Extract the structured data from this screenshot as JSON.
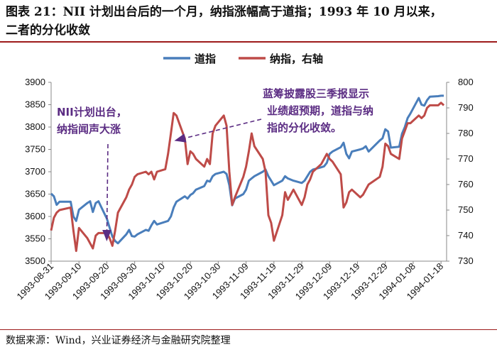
{
  "header": {
    "title_line1": "图表 21：NII 计划出台后的一个月，纳指涨幅高于道指；1993 年 10 月以来，",
    "title_line2": "二者的分化收敛"
  },
  "footer": {
    "source": "数据来源：Wind，兴业证券经济与金融研究院整理"
  },
  "colors": {
    "dow": "#4a7ebb",
    "nasdaq": "#be4b48",
    "annotation": "#5b2c83",
    "rule": "#9d1b1b"
  },
  "chart_data": {
    "type": "line",
    "legend_position": "top",
    "grid": false,
    "x_labels": [
      "1993-08-31",
      "1993-09-10",
      "1993-09-20",
      "1993-09-30",
      "1993-10-10",
      "1993-10-20",
      "1993-10-30",
      "1993-11-09",
      "1993-11-19",
      "1993-11-29",
      "1993-12-09",
      "1993-12-19",
      "1993-12-29",
      "1994-01-08",
      "1994-01-18"
    ],
    "x_range": [
      "1993-08-31",
      "1994-01-20"
    ],
    "left_axis": {
      "range": [
        3500,
        3900
      ],
      "ticks": [
        3500,
        3550,
        3600,
        3650,
        3700,
        3750,
        3800,
        3850,
        3900
      ]
    },
    "right_axis": {
      "range": [
        730,
        800
      ],
      "ticks": [
        730,
        740,
        750,
        760,
        770,
        780,
        790,
        800
      ]
    },
    "series": [
      {
        "name": "道指",
        "axis": "left",
        "points": [
          [
            "1993-08-31",
            3651
          ],
          [
            "1993-09-01",
            3645
          ],
          [
            "1993-09-02",
            3626
          ],
          [
            "1993-09-03",
            3633
          ],
          [
            "1993-09-07",
            3633
          ],
          [
            "1993-09-08",
            3600
          ],
          [
            "1993-09-09",
            3590
          ],
          [
            "1993-09-10",
            3615
          ],
          [
            "1993-09-13",
            3630
          ],
          [
            "1993-09-14",
            3634
          ],
          [
            "1993-09-15",
            3610
          ],
          [
            "1993-09-16",
            3630
          ],
          [
            "1993-09-17",
            3634
          ],
          [
            "1993-09-20",
            3595
          ],
          [
            "1993-09-21",
            3575
          ],
          [
            "1993-09-22",
            3555
          ],
          [
            "1993-09-23",
            3545
          ],
          [
            "1993-09-24",
            3540
          ],
          [
            "1993-09-27",
            3560
          ],
          [
            "1993-09-28",
            3570
          ],
          [
            "1993-09-29",
            3556
          ],
          [
            "1993-09-30",
            3555
          ],
          [
            "1993-10-01",
            3560
          ],
          [
            "1993-10-04",
            3570
          ],
          [
            "1993-10-05",
            3568
          ],
          [
            "1993-10-06",
            3580
          ],
          [
            "1993-10-07",
            3590
          ],
          [
            "1993-10-08",
            3582
          ],
          [
            "1993-10-11",
            3588
          ],
          [
            "1993-10-12",
            3590
          ],
          [
            "1993-10-13",
            3600
          ],
          [
            "1993-10-14",
            3620
          ],
          [
            "1993-10-15",
            3633
          ],
          [
            "1993-10-18",
            3645
          ],
          [
            "1993-10-19",
            3640
          ],
          [
            "1993-10-20",
            3648
          ],
          [
            "1993-10-21",
            3652
          ],
          [
            "1993-10-22",
            3660
          ],
          [
            "1993-10-25",
            3668
          ],
          [
            "1993-10-26",
            3680
          ],
          [
            "1993-10-27",
            3678
          ],
          [
            "1993-10-28",
            3690
          ],
          [
            "1993-10-29",
            3695
          ],
          [
            "1993-11-01",
            3700
          ],
          [
            "1993-11-02",
            3695
          ],
          [
            "1993-11-03",
            3670
          ],
          [
            "1993-11-04",
            3625
          ],
          [
            "1993-11-05",
            3640
          ],
          [
            "1993-11-08",
            3650
          ],
          [
            "1993-11-09",
            3660
          ],
          [
            "1993-11-10",
            3680
          ],
          [
            "1993-11-11",
            3685
          ],
          [
            "1993-11-12",
            3690
          ],
          [
            "1993-11-15",
            3700
          ],
          [
            "1993-11-16",
            3705
          ],
          [
            "1993-11-17",
            3690
          ],
          [
            "1993-11-18",
            3680
          ],
          [
            "1993-11-19",
            3670
          ],
          [
            "1993-11-22",
            3680
          ],
          [
            "1993-11-23",
            3690
          ],
          [
            "1993-11-24",
            3685
          ],
          [
            "1993-11-26",
            3680
          ],
          [
            "1993-11-29",
            3675
          ],
          [
            "1993-11-30",
            3680
          ],
          [
            "1993-12-01",
            3690
          ],
          [
            "1993-12-02",
            3700
          ],
          [
            "1993-12-03",
            3705
          ],
          [
            "1993-12-06",
            3710
          ],
          [
            "1993-12-07",
            3712
          ],
          [
            "1993-12-08",
            3720
          ],
          [
            "1993-12-09",
            3740
          ],
          [
            "1993-12-10",
            3745
          ],
          [
            "1993-12-13",
            3755
          ],
          [
            "1993-12-14",
            3765
          ],
          [
            "1993-12-15",
            3740
          ],
          [
            "1993-12-16",
            3730
          ],
          [
            "1993-12-17",
            3745
          ],
          [
            "1993-12-20",
            3750
          ],
          [
            "1993-12-21",
            3752
          ],
          [
            "1993-12-22",
            3757
          ],
          [
            "1993-12-23",
            3745
          ],
          [
            "1993-12-27",
            3770
          ],
          [
            "1993-12-28",
            3775
          ],
          [
            "1993-12-29",
            3795
          ],
          [
            "1993-12-30",
            3790
          ],
          [
            "1993-12-31",
            3754
          ],
          [
            "1994-01-03",
            3756
          ],
          [
            "1994-01-04",
            3785
          ],
          [
            "1994-01-05",
            3800
          ],
          [
            "1994-01-06",
            3820
          ],
          [
            "1994-01-07",
            3830
          ],
          [
            "1994-01-10",
            3865
          ],
          [
            "1994-01-11",
            3850
          ],
          [
            "1994-01-12",
            3848
          ],
          [
            "1994-01-13",
            3860
          ],
          [
            "1994-01-14",
            3868
          ],
          [
            "1994-01-17",
            3869
          ],
          [
            "1994-01-18",
            3870
          ],
          [
            "1994-01-19",
            3870
          ]
        ]
      },
      {
        "name": "纳指，右轴",
        "axis": "right",
        "points": [
          [
            "1993-08-31",
            742
          ],
          [
            "1993-09-01",
            747
          ],
          [
            "1993-09-02",
            749
          ],
          [
            "1993-09-03",
            750
          ],
          [
            "1993-09-07",
            751
          ],
          [
            "1993-09-08",
            742
          ],
          [
            "1993-09-09",
            734
          ],
          [
            "1993-09-10",
            743
          ],
          [
            "1993-09-13",
            739
          ],
          [
            "1993-09-14",
            737
          ],
          [
            "1993-09-15",
            735
          ],
          [
            "1993-09-16",
            740
          ],
          [
            "1993-09-17",
            741
          ],
          [
            "1993-09-20",
            741
          ],
          [
            "1993-09-21",
            739
          ],
          [
            "1993-09-22",
            736
          ],
          [
            "1993-09-23",
            742
          ],
          [
            "1993-09-24",
            749
          ],
          [
            "1993-09-27",
            755
          ],
          [
            "1993-09-28",
            758
          ],
          [
            "1993-09-29",
            760
          ],
          [
            "1993-09-30",
            763
          ],
          [
            "1993-10-01",
            764
          ],
          [
            "1993-10-04",
            765
          ],
          [
            "1993-10-05",
            764
          ],
          [
            "1993-10-06",
            765
          ],
          [
            "1993-10-07",
            762
          ],
          [
            "1993-10-08",
            765
          ],
          [
            "1993-10-11",
            766
          ],
          [
            "1993-10-12",
            772
          ],
          [
            "1993-10-13",
            780
          ],
          [
            "1993-10-14",
            788
          ],
          [
            "1993-10-15",
            787
          ],
          [
            "1993-10-18",
            778
          ],
          [
            "1993-10-19",
            768
          ],
          [
            "1993-10-20",
            773
          ],
          [
            "1993-10-21",
            772
          ],
          [
            "1993-10-22",
            770
          ],
          [
            "1993-10-25",
            767
          ],
          [
            "1993-10-26",
            770
          ],
          [
            "1993-10-27",
            768
          ],
          [
            "1993-10-28",
            780
          ],
          [
            "1993-10-29",
            783
          ],
          [
            "1993-11-01",
            787
          ],
          [
            "1993-11-02",
            783
          ],
          [
            "1993-11-03",
            765
          ],
          [
            "1993-11-04",
            752
          ],
          [
            "1993-11-05",
            755
          ],
          [
            "1993-11-08",
            763
          ],
          [
            "1993-11-09",
            767
          ],
          [
            "1993-11-10",
            773
          ],
          [
            "1993-11-11",
            780
          ],
          [
            "1993-11-12",
            775
          ],
          [
            "1993-11-15",
            770
          ],
          [
            "1993-11-16",
            765
          ],
          [
            "1993-11-17",
            748
          ],
          [
            "1993-11-18",
            745
          ],
          [
            "1993-11-19",
            738
          ],
          [
            "1993-11-22",
            748
          ],
          [
            "1993-11-23",
            757
          ],
          [
            "1993-11-24",
            754
          ],
          [
            "1993-11-26",
            758
          ],
          [
            "1993-11-29",
            752
          ],
          [
            "1993-11-30",
            755
          ],
          [
            "1993-12-01",
            760
          ],
          [
            "1993-12-02",
            762
          ],
          [
            "1993-12-03",
            765
          ],
          [
            "1993-12-06",
            768
          ],
          [
            "1993-12-07",
            770
          ],
          [
            "1993-12-08",
            772
          ],
          [
            "1993-12-09",
            770
          ],
          [
            "1993-12-10",
            769
          ],
          [
            "1993-12-13",
            764
          ],
          [
            "1993-12-14",
            751
          ],
          [
            "1993-12-15",
            753
          ],
          [
            "1993-12-16",
            757
          ],
          [
            "1993-12-17",
            758
          ],
          [
            "1993-12-20",
            755
          ],
          [
            "1993-12-21",
            756
          ],
          [
            "1993-12-22",
            758
          ],
          [
            "1993-12-23",
            760
          ],
          [
            "1993-12-27",
            763
          ],
          [
            "1993-12-28",
            767
          ],
          [
            "1993-12-29",
            776
          ],
          [
            "1993-12-30",
            775
          ],
          [
            "1993-12-31",
            772
          ],
          [
            "1994-01-03",
            770
          ],
          [
            "1994-01-04",
            778
          ],
          [
            "1994-01-05",
            781
          ],
          [
            "1994-01-06",
            784
          ],
          [
            "1994-01-07",
            784
          ],
          [
            "1994-01-10",
            787
          ],
          [
            "1994-01-11",
            786
          ],
          [
            "1994-01-12",
            787
          ],
          [
            "1994-01-13",
            790
          ],
          [
            "1994-01-14",
            791
          ],
          [
            "1994-01-17",
            791
          ],
          [
            "1994-01-18",
            792
          ],
          [
            "1994-01-19",
            791
          ]
        ]
      }
    ],
    "annotations": [
      {
        "lines": [
          "NII计划出台，",
          "纳指闻声大涨"
        ],
        "target": [
          "1993-09-21",
          3540
        ]
      },
      {
        "lines": [
          "蓝筹披露股三季报显示",
          "业绩超预期，道指与纳",
          "指的分化收敛。"
        ],
        "target": [
          "1993-10-14",
          3780
        ]
      }
    ]
  }
}
